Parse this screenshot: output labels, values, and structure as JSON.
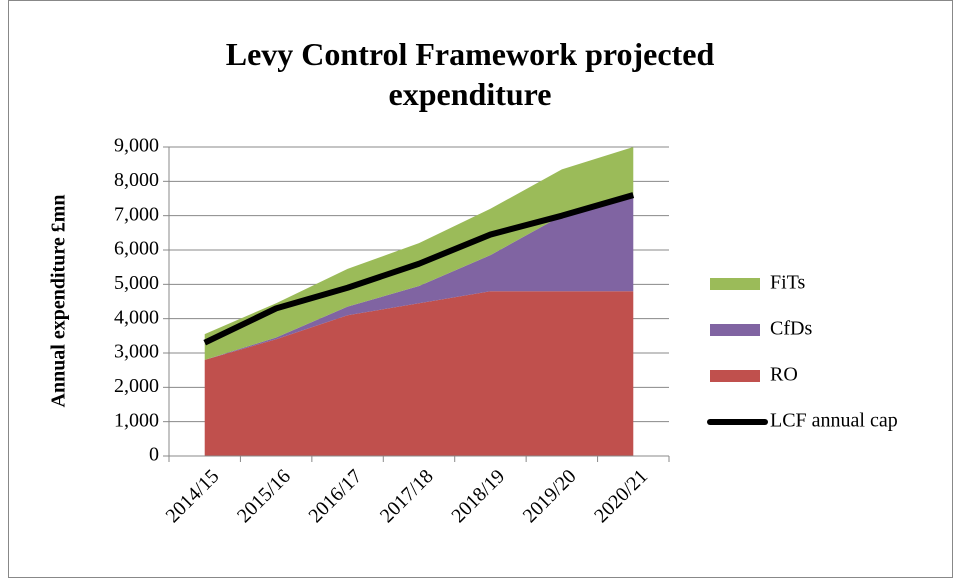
{
  "chart_data": {
    "type": "stacked_area",
    "title": "Levy Control Framework projected expenditure",
    "y_label": "Annual expenditure £mn",
    "categories": [
      "2014/15",
      "2015/16",
      "2016/17",
      "2017/18",
      "2018/19",
      "2019/20",
      "2020/21"
    ],
    "series": [
      {
        "name": "RO",
        "color": "#c0504d",
        "values": [
          2800,
          3400,
          4100,
          4450,
          4800,
          4800,
          4800
        ]
      },
      {
        "name": "CfDs",
        "color": "#8064a2",
        "values": [
          0,
          50,
          250,
          500,
          1050,
          2200,
          2800
        ]
      },
      {
        "name": "FiTs",
        "color": "#9bbb59",
        "values": [
          750,
          1000,
          1100,
          1250,
          1350,
          1350,
          1400
        ]
      }
    ],
    "lines": [
      {
        "name": "LCF annual cap",
        "color": "#000000",
        "values": [
          3300,
          4300,
          4900,
          5600,
          6450,
          7000,
          7600
        ]
      }
    ],
    "ylim": [
      0,
      9000
    ],
    "yticks": [
      0,
      {
        "value": 1000,
        "label": "1,000"
      },
      {
        "value": 2000,
        "label": "2,000"
      },
      {
        "value": 3000,
        "label": "3,000"
      },
      {
        "value": 4000,
        "label": "4,000"
      },
      {
        "value": 5000,
        "label": "5,000"
      },
      {
        "value": 6000,
        "label": "6,000"
      },
      {
        "value": 7000,
        "label": "7,000"
      },
      {
        "value": 8000,
        "label": "8,000"
      },
      {
        "value": 9000,
        "label": "9,000"
      }
    ],
    "grid": true,
    "legend": "right"
  }
}
